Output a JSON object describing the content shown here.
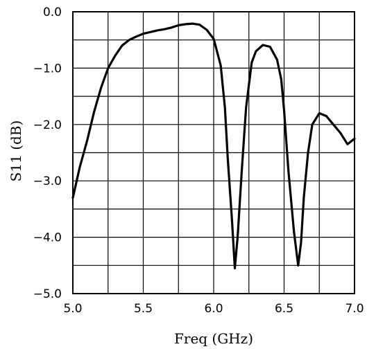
{
  "chart_data": {
    "type": "line",
    "title": "",
    "xlabel": "Freq (GHz)",
    "ylabel": "S11 (dB)",
    "xlim": [
      5.0,
      7.0
    ],
    "ylim": [
      -5.0,
      0.0
    ],
    "x_ticks": [
      5.0,
      5.5,
      6.0,
      6.5,
      7.0
    ],
    "x_tick_labels": [
      "5.0",
      "5.5",
      "6.0",
      "6.5",
      "7.0"
    ],
    "y_ticks": [
      0.0,
      -1.0,
      -2.0,
      -3.0,
      -4.0,
      -5.0
    ],
    "y_tick_labels": [
      "0.0",
      "−1.0",
      "−2.0",
      "−3.0",
      "−4.0",
      "−5.0"
    ],
    "grid": true,
    "grid_x_step": 0.25,
    "grid_y_step": 0.5,
    "line_color": "#000000",
    "series": [
      {
        "x": [
          5.0,
          5.05,
          5.1,
          5.15,
          5.2,
          5.25,
          5.3,
          5.35,
          5.4,
          5.45,
          5.5,
          5.55,
          5.6,
          5.65,
          5.7,
          5.75,
          5.8,
          5.85,
          5.9,
          5.95,
          6.0,
          6.05,
          6.08,
          6.1,
          6.13,
          6.15,
          6.17,
          6.2,
          6.23,
          6.27,
          6.3,
          6.35,
          6.4,
          6.45,
          6.48,
          6.5,
          6.53,
          6.57,
          6.6,
          6.62,
          6.64,
          6.67,
          6.7,
          6.75,
          6.8,
          6.85,
          6.9,
          6.95,
          7.0
        ],
        "y": [
          -3.3,
          -2.75,
          -2.3,
          -1.78,
          -1.35,
          -1.0,
          -0.78,
          -0.6,
          -0.5,
          -0.44,
          -0.39,
          -0.36,
          -0.33,
          -0.31,
          -0.28,
          -0.24,
          -0.22,
          -0.21,
          -0.23,
          -0.32,
          -0.48,
          -0.95,
          -1.7,
          -2.6,
          -3.7,
          -4.55,
          -4.0,
          -2.8,
          -1.7,
          -0.9,
          -0.7,
          -0.59,
          -0.62,
          -0.85,
          -1.2,
          -1.75,
          -2.8,
          -3.9,
          -4.5,
          -4.1,
          -3.3,
          -2.5,
          -2.0,
          -1.8,
          -1.85,
          -2.0,
          -2.15,
          -2.35,
          -2.25
        ]
      }
    ]
  }
}
